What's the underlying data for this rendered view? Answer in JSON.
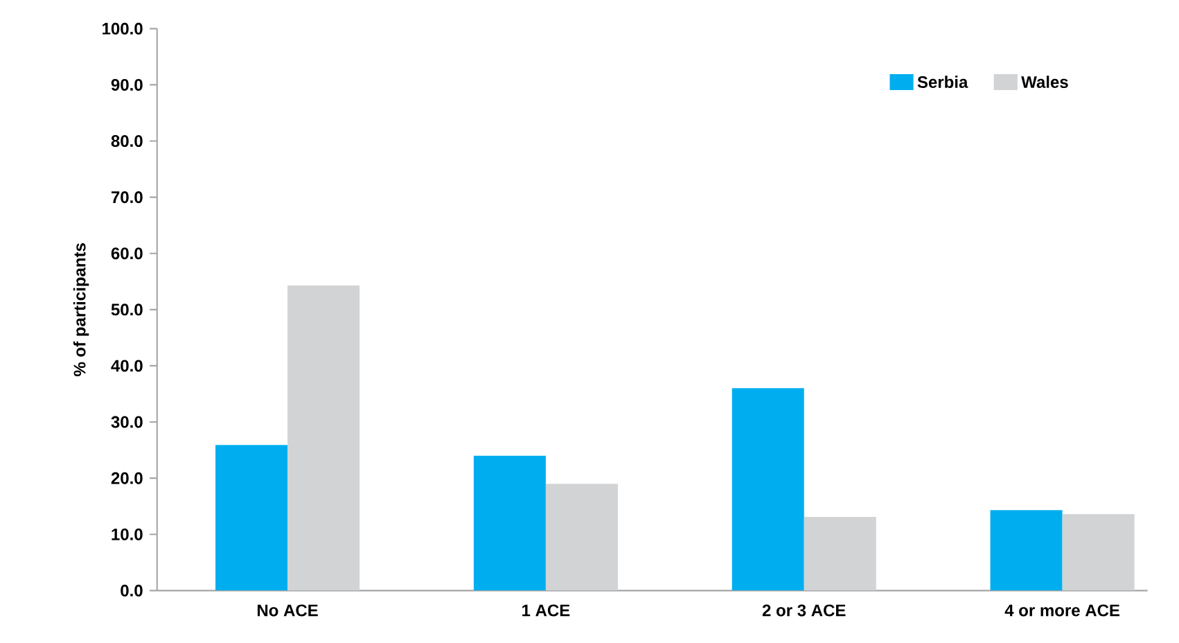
{
  "chart_data": {
    "type": "bar",
    "ylabel": "% of participants",
    "categories": [
      "No ACE",
      "1 ACE",
      "2 or 3 ACE",
      "4 or more ACE"
    ],
    "series": [
      {
        "name": "Serbia",
        "color": "#00aeef",
        "values": [
          25.9,
          24.0,
          36.0,
          14.3
        ]
      },
      {
        "name": "Wales",
        "color": "#d1d3d4",
        "values": [
          54.3,
          19.0,
          13.1,
          13.6
        ]
      }
    ],
    "ylim": [
      0,
      100
    ],
    "yticks": [
      {
        "value": 0,
        "label": "0.0"
      },
      {
        "value": 10,
        "label": "10.0"
      },
      {
        "value": 20,
        "label": "20.0"
      },
      {
        "value": 30,
        "label": "30.0"
      },
      {
        "value": 40,
        "label": "40.0"
      },
      {
        "value": 50,
        "label": "50.0"
      },
      {
        "value": 60,
        "label": "60.0"
      },
      {
        "value": 70,
        "label": "70.0"
      },
      {
        "value": 80,
        "label": "80.0"
      },
      {
        "value": 90,
        "label": "90.0"
      },
      {
        "value": 100,
        "label": "100.0"
      }
    ],
    "grid": false,
    "legend": "top right"
  }
}
